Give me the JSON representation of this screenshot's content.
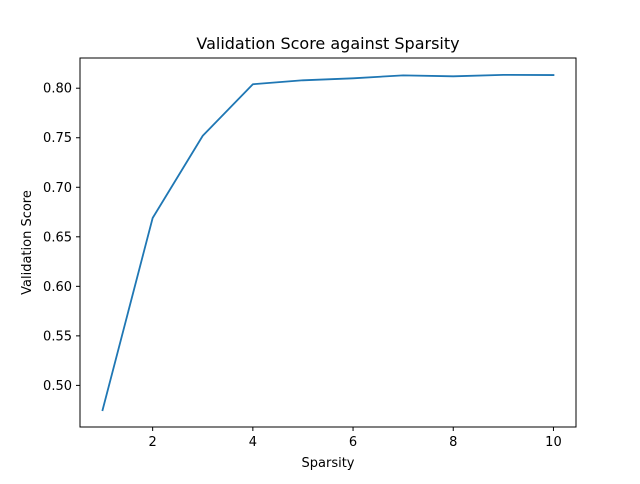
{
  "chart_data": {
    "type": "line",
    "title": "Validation Score against Sparsity",
    "xlabel": "Sparsity",
    "ylabel": "Validation Score",
    "xlim": [
      0.55,
      10.45
    ],
    "ylim": [
      0.458,
      0.8305
    ],
    "xticks": [
      2,
      4,
      6,
      8,
      10
    ],
    "xtick_labels": [
      "2",
      "4",
      "6",
      "8",
      "10"
    ],
    "yticks": [
      0.5,
      0.55,
      0.6,
      0.65,
      0.7,
      0.75,
      0.8
    ],
    "ytick_labels": [
      "0.50",
      "0.55",
      "0.60",
      "0.65",
      "0.70",
      "0.75",
      "0.80"
    ],
    "grid": false,
    "series": [
      {
        "color": "#1f77b4",
        "x": [
          1,
          2,
          3,
          4,
          5,
          6,
          7,
          8,
          9,
          10
        ],
        "y": [
          0.475,
          0.669,
          0.752,
          0.804,
          0.808,
          0.81,
          0.813,
          0.812,
          0.8135,
          0.8133
        ]
      }
    ]
  }
}
